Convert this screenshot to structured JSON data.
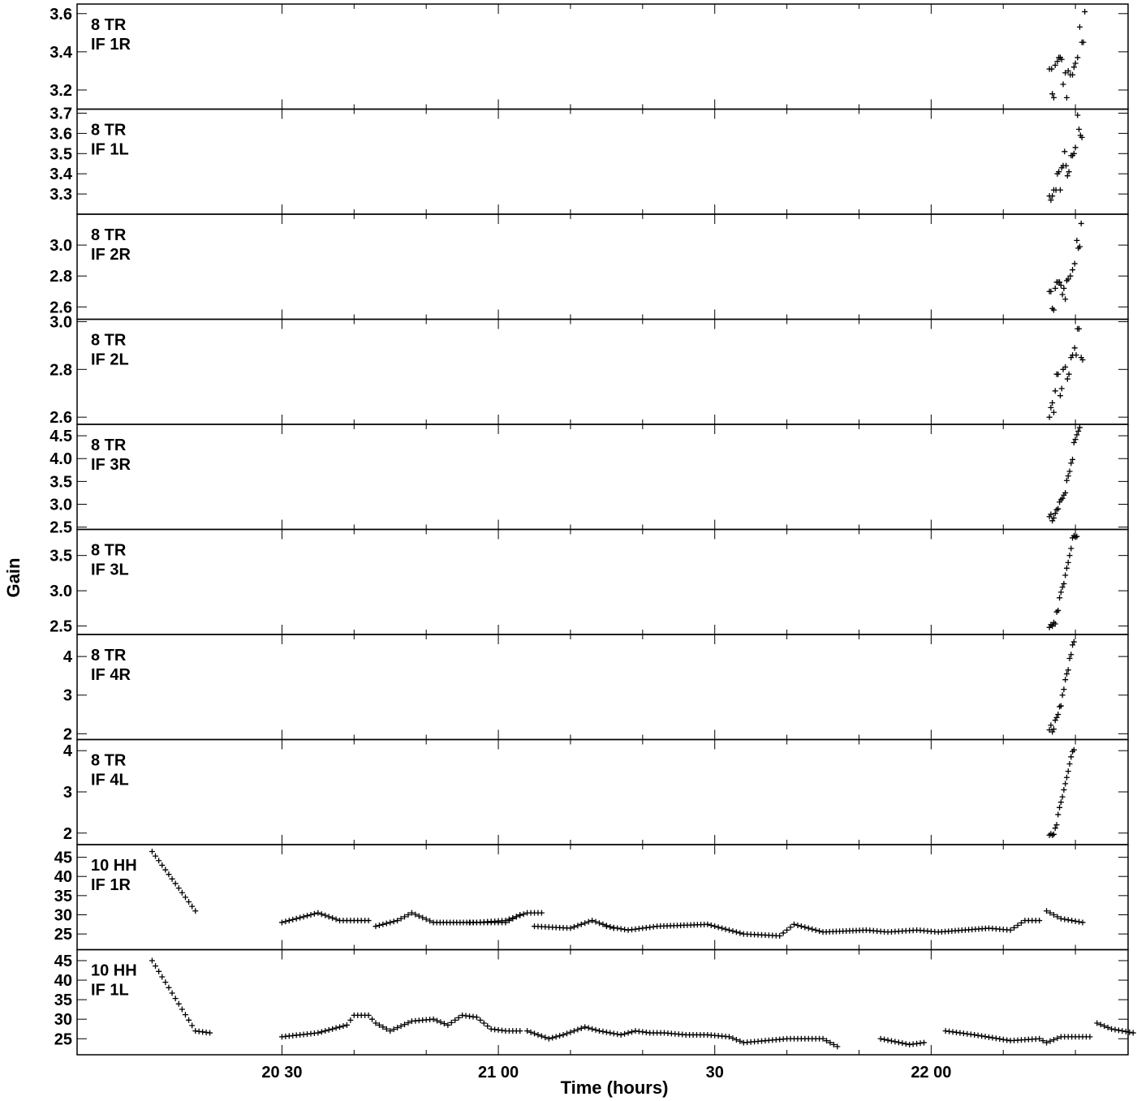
{
  "chart_data": {
    "type": "scatter",
    "marker": "+",
    "xlabel": "Time (hours)",
    "ylabel": "Gain",
    "x_unit": "minutes after 20:00",
    "xlim": [
      1.6,
      147.3
    ],
    "x_ticks": [
      {
        "value": 30,
        "label": "20 30"
      },
      {
        "value": 60,
        "label": "21 00"
      },
      {
        "value": 90,
        "label": "30"
      },
      {
        "value": 120,
        "label": "22 00"
      },
      {
        "value": 150,
        "label": "30"
      }
    ],
    "x_minor_ticks": [
      40,
      50,
      70,
      80,
      100,
      110,
      130,
      140
    ],
    "panels": [
      {
        "station": "8 TR",
        "if": "IF 1R",
        "ylim": [
          3.1,
          3.65
        ],
        "yticks": [
          3.2,
          3.4,
          3.6
        ],
        "ytick_labels": [
          "3.2",
          "3.4",
          "3.6"
        ],
        "points": [
          [
            136.4,
            3.31
          ],
          [
            136.7,
            3.31
          ],
          [
            136.8,
            3.18
          ],
          [
            137.0,
            3.16
          ],
          [
            137.2,
            3.33
          ],
          [
            137.5,
            3.35
          ],
          [
            137.7,
            3.37
          ],
          [
            137.9,
            3.37
          ],
          [
            138.1,
            3.36
          ],
          [
            138.3,
            3.23
          ],
          [
            138.6,
            3.29
          ],
          [
            138.8,
            3.16
          ],
          [
            139.0,
            3.3
          ],
          [
            139.3,
            3.28
          ],
          [
            139.6,
            3.28
          ],
          [
            139.8,
            3.32
          ],
          [
            140.0,
            3.34
          ],
          [
            140.3,
            3.37
          ],
          [
            140.6,
            3.53
          ],
          [
            140.9,
            3.45
          ],
          [
            141.1,
            3.45
          ],
          [
            141.3,
            3.61
          ]
        ]
      },
      {
        "station": "8 TR",
        "if": "IF 1L",
        "ylim": [
          3.2,
          3.72
        ],
        "yticks": [
          3.3,
          3.4,
          3.5,
          3.6,
          3.7
        ],
        "ytick_labels": [
          "3.3",
          "3.4",
          "3.5",
          "3.6",
          "3.7"
        ],
        "points": [
          [
            136.4,
            3.29
          ],
          [
            136.6,
            3.27
          ],
          [
            136.8,
            3.29
          ],
          [
            137.0,
            3.32
          ],
          [
            137.3,
            3.32
          ],
          [
            137.5,
            3.4
          ],
          [
            137.7,
            3.41
          ],
          [
            137.9,
            3.32
          ],
          [
            138.1,
            3.43
          ],
          [
            138.3,
            3.44
          ],
          [
            138.5,
            3.51
          ],
          [
            138.7,
            3.44
          ],
          [
            138.9,
            3.39
          ],
          [
            139.1,
            3.41
          ],
          [
            139.4,
            3.49
          ],
          [
            139.6,
            3.49
          ],
          [
            139.8,
            3.5
          ],
          [
            140.0,
            3.53
          ],
          [
            140.3,
            3.69
          ],
          [
            140.5,
            3.62
          ],
          [
            140.7,
            3.59
          ],
          [
            140.9,
            3.58
          ]
        ]
      },
      {
        "station": "8 TR",
        "if": "IF 2R",
        "ylim": [
          2.52,
          3.2
        ],
        "yticks": [
          2.6,
          2.8,
          3.0
        ],
        "ytick_labels": [
          "2.6",
          "2.8",
          "3.0"
        ],
        "points": [
          [
            136.4,
            2.7
          ],
          [
            136.6,
            2.7
          ],
          [
            136.8,
            2.59
          ],
          [
            137.0,
            2.58
          ],
          [
            137.2,
            2.72
          ],
          [
            137.4,
            2.76
          ],
          [
            137.6,
            2.76
          ],
          [
            137.8,
            2.76
          ],
          [
            138.0,
            2.74
          ],
          [
            138.2,
            2.68
          ],
          [
            138.4,
            2.72
          ],
          [
            138.6,
            2.65
          ],
          [
            138.8,
            2.77
          ],
          [
            139.0,
            2.78
          ],
          [
            139.3,
            2.8
          ],
          [
            139.6,
            2.84
          ],
          [
            139.9,
            2.88
          ],
          [
            140.2,
            3.03
          ],
          [
            140.4,
            2.98
          ],
          [
            140.6,
            2.99
          ],
          [
            140.8,
            3.14
          ]
        ]
      },
      {
        "station": "8 TR",
        "if": "IF 2L",
        "ylim": [
          2.57,
          3.01
        ],
        "yticks": [
          2.6,
          2.8,
          3.0
        ],
        "ytick_labels": [
          "2.6",
          "2.8",
          "3.0"
        ],
        "points": [
          [
            136.4,
            2.6
          ],
          [
            136.6,
            2.64
          ],
          [
            136.8,
            2.66
          ],
          [
            137.0,
            2.62
          ],
          [
            137.2,
            2.71
          ],
          [
            137.4,
            2.78
          ],
          [
            137.6,
            2.78
          ],
          [
            137.9,
            2.69
          ],
          [
            138.1,
            2.72
          ],
          [
            138.3,
            2.8
          ],
          [
            138.6,
            2.81
          ],
          [
            138.9,
            2.76
          ],
          [
            139.1,
            2.78
          ],
          [
            139.4,
            2.85
          ],
          [
            139.6,
            2.86
          ],
          [
            139.9,
            2.89
          ],
          [
            140.1,
            2.86
          ],
          [
            140.3,
            2.97
          ],
          [
            140.5,
            2.97
          ],
          [
            140.8,
            2.85
          ],
          [
            141.0,
            2.84
          ]
        ]
      },
      {
        "station": "8 TR",
        "if": "IF 3R",
        "ylim": [
          2.45,
          4.75
        ],
        "yticks": [
          2.5,
          3.0,
          3.5,
          4.0,
          4.5
        ],
        "ytick_labels": [
          "2.5",
          "3.0",
          "3.5",
          "4.0",
          "4.5"
        ],
        "points": [
          [
            136.4,
            2.73
          ],
          [
            136.6,
            2.78
          ],
          [
            136.8,
            2.64
          ],
          [
            137.0,
            2.7
          ],
          [
            137.2,
            2.8
          ],
          [
            137.4,
            2.88
          ],
          [
            137.6,
            2.9
          ],
          [
            137.8,
            3.05
          ],
          [
            138.0,
            3.1
          ],
          [
            138.2,
            3.13
          ],
          [
            138.4,
            3.2
          ],
          [
            138.6,
            3.25
          ],
          [
            138.8,
            3.52
          ],
          [
            139.0,
            3.62
          ],
          [
            139.2,
            3.72
          ],
          [
            139.4,
            3.9
          ],
          [
            139.6,
            3.98
          ],
          [
            139.8,
            4.35
          ],
          [
            140.0,
            4.42
          ],
          [
            140.2,
            4.52
          ],
          [
            140.4,
            4.6
          ],
          [
            140.6,
            4.68
          ]
        ]
      },
      {
        "station": "8 TR",
        "if": "IF 3L",
        "ylim": [
          2.38,
          3.87
        ],
        "yticks": [
          2.5,
          3.0,
          3.5
        ],
        "ytick_labels": [
          "2.5",
          "3.0",
          "3.5"
        ],
        "points": [
          [
            136.4,
            2.48
          ],
          [
            136.6,
            2.52
          ],
          [
            136.8,
            2.5
          ],
          [
            137.0,
            2.55
          ],
          [
            137.2,
            2.53
          ],
          [
            137.4,
            2.7
          ],
          [
            137.6,
            2.72
          ],
          [
            137.8,
            2.9
          ],
          [
            138.0,
            2.98
          ],
          [
            138.2,
            3.05
          ],
          [
            138.4,
            3.1
          ],
          [
            138.6,
            3.22
          ],
          [
            138.8,
            3.32
          ],
          [
            139.0,
            3.4
          ],
          [
            139.2,
            3.5
          ],
          [
            139.4,
            3.6
          ],
          [
            139.6,
            3.75
          ],
          [
            139.8,
            3.78
          ],
          [
            140.0,
            3.76
          ],
          [
            140.2,
            3.77
          ]
        ]
      },
      {
        "station": "8 TR",
        "if": "IF 4R",
        "ylim": [
          1.85,
          4.57
        ],
        "yticks": [
          2,
          3,
          4
        ],
        "ytick_labels": [
          "2",
          "3",
          "4"
        ],
        "points": [
          [
            136.4,
            2.1
          ],
          [
            136.6,
            2.22
          ],
          [
            136.8,
            2.05
          ],
          [
            137.0,
            2.12
          ],
          [
            137.2,
            2.35
          ],
          [
            137.4,
            2.42
          ],
          [
            137.6,
            2.5
          ],
          [
            137.8,
            2.7
          ],
          [
            138.0,
            2.72
          ],
          [
            138.2,
            3.0
          ],
          [
            138.4,
            3.15
          ],
          [
            138.6,
            3.4
          ],
          [
            138.8,
            3.55
          ],
          [
            139.0,
            3.65
          ],
          [
            139.2,
            3.95
          ],
          [
            139.4,
            4.05
          ],
          [
            139.6,
            4.3
          ],
          [
            139.8,
            4.38
          ]
        ]
      },
      {
        "station": "8 TR",
        "if": "IF 4L",
        "ylim": [
          1.72,
          4.27
        ],
        "yticks": [
          2,
          3,
          4
        ],
        "ytick_labels": [
          "2",
          "3",
          "4"
        ],
        "points": [
          [
            136.4,
            1.95
          ],
          [
            136.6,
            1.98
          ],
          [
            136.8,
            1.95
          ],
          [
            137.0,
            1.97
          ],
          [
            137.2,
            2.12
          ],
          [
            137.4,
            2.2
          ],
          [
            137.6,
            2.45
          ],
          [
            137.8,
            2.62
          ],
          [
            138.0,
            2.75
          ],
          [
            138.2,
            2.88
          ],
          [
            138.4,
            3.05
          ],
          [
            138.6,
            3.2
          ],
          [
            138.8,
            3.35
          ],
          [
            139.0,
            3.5
          ],
          [
            139.2,
            3.68
          ],
          [
            139.4,
            3.85
          ],
          [
            139.6,
            3.98
          ],
          [
            139.8,
            4.02
          ]
        ]
      },
      {
        "station": "10 HH",
        "if": "IF 1R",
        "ylim": [
          20.9,
          48.3
        ],
        "yticks": [
          25,
          30,
          35,
          40,
          45
        ],
        "ytick_labels": [
          "25",
          "30",
          "35",
          "40",
          "45"
        ],
        "polyline": [
          [
            12,
            46.5
          ],
          [
            18,
            31
          ],
          null,
          [
            30,
            28
          ],
          [
            33,
            29.5
          ],
          [
            35,
            30.5
          ],
          [
            38,
            28.5
          ],
          [
            42,
            28.5
          ],
          null,
          [
            43,
            27
          ],
          [
            46,
            28.5
          ],
          [
            48,
            30.5
          ],
          [
            51,
            28
          ],
          [
            57,
            28
          ],
          [
            61,
            28.5
          ],
          [
            64,
            30.5
          ],
          [
            66,
            30.5
          ],
          null,
          [
            56,
            28
          ],
          [
            61,
            28
          ],
          [
            63,
            30
          ],
          null,
          [
            65,
            27
          ],
          [
            70,
            26.5
          ],
          [
            73,
            28.5
          ],
          [
            76,
            26.5
          ],
          null,
          [
            75,
            27
          ],
          [
            78,
            26
          ],
          [
            82,
            27
          ],
          [
            89,
            27.5
          ],
          [
            94,
            25
          ],
          [
            99,
            24.5
          ],
          [
            101,
            27.5
          ],
          [
            105,
            25.5
          ],
          [
            111,
            26
          ],
          [
            114,
            25.5
          ],
          [
            118,
            26
          ],
          [
            121,
            25.5
          ],
          [
            128,
            26.5
          ],
          [
            131,
            26
          ],
          [
            133,
            28.5
          ],
          [
            135,
            28.5
          ],
          null,
          [
            136,
            31
          ],
          [
            138,
            29
          ],
          [
            141,
            28
          ]
        ]
      },
      {
        "station": "10 HH",
        "if": "IF 1L",
        "ylim": [
          20.9,
          47.8
        ],
        "yticks": [
          25,
          30,
          35,
          40,
          45
        ],
        "ytick_labels": [
          "25",
          "30",
          "35",
          "40",
          "45"
        ],
        "polyline": [
          [
            12,
            45
          ],
          [
            18,
            27
          ],
          [
            20,
            26.5
          ],
          null,
          [
            30,
            25.5
          ],
          [
            35,
            26.5
          ],
          [
            39,
            28.5
          ],
          [
            40,
            31
          ],
          [
            42,
            31
          ],
          [
            43,
            29
          ],
          [
            45,
            27
          ],
          [
            48,
            29.5
          ],
          [
            51,
            30
          ],
          [
            53,
            28.5
          ],
          [
            55,
            31
          ],
          [
            57,
            30.5
          ],
          [
            59,
            27.5
          ],
          [
            61,
            27
          ],
          [
            63,
            27
          ],
          null,
          [
            64,
            27
          ],
          [
            67,
            25
          ],
          [
            69,
            26
          ],
          [
            72,
            28
          ],
          [
            74,
            27
          ],
          [
            77,
            26
          ],
          [
            79,
            27
          ],
          [
            81,
            26.5
          ],
          [
            83,
            26.5
          ],
          [
            86,
            26
          ],
          [
            89,
            26
          ],
          [
            92,
            25.5
          ],
          [
            94,
            24
          ],
          [
            97,
            24.5
          ],
          [
            100,
            25
          ],
          [
            105,
            25
          ],
          [
            107,
            23
          ],
          null,
          [
            113,
            25
          ],
          [
            117,
            23.5
          ],
          [
            119,
            24
          ],
          null,
          [
            122,
            27
          ],
          [
            126,
            26
          ],
          [
            131,
            24.5
          ],
          [
            135,
            25
          ],
          [
            136,
            24
          ],
          [
            138,
            25.5
          ],
          [
            142,
            25.5
          ],
          null,
          [
            143,
            29
          ],
          [
            145,
            27.5
          ],
          [
            148,
            26.5
          ]
        ]
      }
    ]
  },
  "panel_labels": {
    "p0_station": "8 TR",
    "p0_if": "IF 1R",
    "p1_station": "8 TR",
    "p1_if": "IF 1L",
    "p2_station": "8 TR",
    "p2_if": "IF 2R",
    "p3_station": "8 TR",
    "p3_if": "IF 2L",
    "p4_station": "8 TR",
    "p4_if": "IF 3R",
    "p5_station": "8 TR",
    "p5_if": "IF 3L",
    "p6_station": "8 TR",
    "p6_if": "IF 4R",
    "p7_station": "8 TR",
    "p7_if": "IF 4L",
    "p8_station": "10 HH",
    "p8_if": "IF 1R",
    "p9_station": "10 HH",
    "p9_if": "IF 1L"
  }
}
